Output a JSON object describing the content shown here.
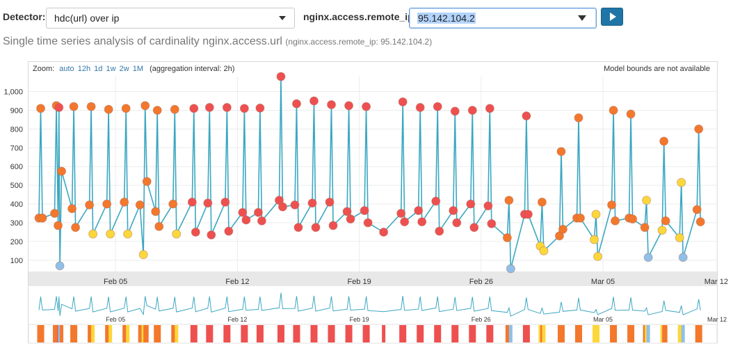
{
  "controls": {
    "detector_label": "Detector:",
    "detector_value": "hdc(url) over ip",
    "entity_label": "nginx.access.remote_ip:",
    "entity_value": "95.142.104.2",
    "run_icon": "play-icon"
  },
  "subtitle": {
    "main": "Single time series analysis of cardinality nginx.access.url",
    "entity": "(nginx.access.remote_ip: 95.142.104.2)"
  },
  "zoom": {
    "label": "Zoom:",
    "options": [
      "auto",
      "12h",
      "1d",
      "1w",
      "2w",
      "1M"
    ],
    "aggregation": "(aggregation interval: 2h)"
  },
  "bounds_note": "Model bounds are not available",
  "colors": {
    "line": "#3ba7c1",
    "critical": "#ee5050",
    "major": "#f3782c",
    "minor": "#fcd73a",
    "warning": "#8ec0ea",
    "axis_band": "#e8e8e8"
  },
  "chart_data": {
    "type": "line",
    "x_ticks": [
      "Feb 05",
      "Feb 12",
      "Feb 19",
      "Feb 26",
      "Mar 05",
      "Mar 12"
    ],
    "x_range": [
      "Jan 31",
      "Mar 12"
    ],
    "y_ticks": [
      100,
      200,
      300,
      400,
      500,
      600,
      700,
      800,
      900,
      "1,000"
    ],
    "ylim": [
      40,
      1080
    ],
    "grid": true,
    "series": [
      {
        "points": [
          {
            "x": 0.6,
            "y": 325,
            "s": "major"
          },
          {
            "x": 0.7,
            "y": 910,
            "s": "major"
          },
          {
            "x": 0.8,
            "y": 325,
            "s": "major"
          },
          {
            "x": 1.5,
            "y": 350,
            "s": "major"
          },
          {
            "x": 1.6,
            "y": 925,
            "s": "major"
          },
          {
            "x": 1.7,
            "y": 285,
            "s": "major"
          },
          {
            "x": 1.75,
            "y": 915,
            "s": "critical"
          },
          {
            "x": 1.8,
            "y": 70,
            "s": "warning"
          },
          {
            "x": 1.9,
            "y": 575,
            "s": "major"
          },
          {
            "x": 2.5,
            "y": 375,
            "s": "major"
          },
          {
            "x": 2.6,
            "y": 920,
            "s": "major"
          },
          {
            "x": 2.7,
            "y": 275,
            "s": "major"
          },
          {
            "x": 3.5,
            "y": 395,
            "s": "major"
          },
          {
            "x": 3.6,
            "y": 920,
            "s": "major"
          },
          {
            "x": 3.7,
            "y": 240,
            "s": "minor"
          },
          {
            "x": 4.5,
            "y": 400,
            "s": "major"
          },
          {
            "x": 4.6,
            "y": 905,
            "s": "major"
          },
          {
            "x": 4.7,
            "y": 240,
            "s": "minor"
          },
          {
            "x": 5.5,
            "y": 410,
            "s": "major"
          },
          {
            "x": 5.6,
            "y": 910,
            "s": "major"
          },
          {
            "x": 5.7,
            "y": 240,
            "s": "minor"
          },
          {
            "x": 6.4,
            "y": 395,
            "s": "major"
          },
          {
            "x": 6.6,
            "y": 130,
            "s": "minor"
          },
          {
            "x": 6.7,
            "y": 925,
            "s": "major"
          },
          {
            "x": 6.8,
            "y": 520,
            "s": "major"
          },
          {
            "x": 7.3,
            "y": 360,
            "s": "major"
          },
          {
            "x": 7.4,
            "y": 900,
            "s": "major"
          },
          {
            "x": 7.5,
            "y": 280,
            "s": "major"
          },
          {
            "x": 8.3,
            "y": 400,
            "s": "major"
          },
          {
            "x": 8.4,
            "y": 905,
            "s": "major"
          },
          {
            "x": 8.5,
            "y": 240,
            "s": "minor"
          },
          {
            "x": 9.4,
            "y": 410,
            "s": "critical"
          },
          {
            "x": 9.5,
            "y": 910,
            "s": "critical"
          },
          {
            "x": 9.6,
            "y": 250,
            "s": "critical"
          },
          {
            "x": 10.3,
            "y": 405,
            "s": "critical"
          },
          {
            "x": 10.4,
            "y": 915,
            "s": "critical"
          },
          {
            "x": 10.5,
            "y": 235,
            "s": "critical"
          },
          {
            "x": 11.3,
            "y": 410,
            "s": "critical"
          },
          {
            "x": 11.4,
            "y": 915,
            "s": "critical"
          },
          {
            "x": 11.5,
            "y": 255,
            "s": "critical"
          },
          {
            "x": 12.3,
            "y": 355,
            "s": "critical"
          },
          {
            "x": 12.4,
            "y": 910,
            "s": "critical"
          },
          {
            "x": 12.5,
            "y": 315,
            "s": "critical"
          },
          {
            "x": 13.2,
            "y": 355,
            "s": "critical"
          },
          {
            "x": 13.3,
            "y": 912,
            "s": "critical"
          },
          {
            "x": 13.4,
            "y": 310,
            "s": "critical"
          },
          {
            "x": 14.4,
            "y": 420,
            "s": "critical"
          },
          {
            "x": 14.5,
            "y": 1080,
            "s": "critical"
          },
          {
            "x": 14.6,
            "y": 385,
            "s": "critical"
          },
          {
            "x": 15.3,
            "y": 395,
            "s": "critical"
          },
          {
            "x": 15.4,
            "y": 935,
            "s": "critical"
          },
          {
            "x": 15.5,
            "y": 275,
            "s": "critical"
          },
          {
            "x": 16.3,
            "y": 405,
            "s": "critical"
          },
          {
            "x": 16.4,
            "y": 950,
            "s": "critical"
          },
          {
            "x": 16.5,
            "y": 275,
            "s": "critical"
          },
          {
            "x": 17.3,
            "y": 410,
            "s": "critical"
          },
          {
            "x": 17.4,
            "y": 930,
            "s": "critical"
          },
          {
            "x": 17.5,
            "y": 285,
            "s": "critical"
          },
          {
            "x": 18.3,
            "y": 360,
            "s": "critical"
          },
          {
            "x": 18.4,
            "y": 925,
            "s": "critical"
          },
          {
            "x": 18.5,
            "y": 320,
            "s": "critical"
          },
          {
            "x": 19.3,
            "y": 365,
            "s": "critical"
          },
          {
            "x": 19.4,
            "y": 920,
            "s": "critical"
          },
          {
            "x": 19.5,
            "y": 300,
            "s": "critical"
          },
          {
            "x": 20.4,
            "y": 250,
            "s": "critical"
          },
          {
            "x": 21.4,
            "y": 350,
            "s": "critical"
          },
          {
            "x": 21.5,
            "y": 945,
            "s": "critical"
          },
          {
            "x": 21.6,
            "y": 305,
            "s": "critical"
          },
          {
            "x": 22.4,
            "y": 365,
            "s": "critical"
          },
          {
            "x": 22.5,
            "y": 915,
            "s": "critical"
          },
          {
            "x": 22.6,
            "y": 305,
            "s": "critical"
          },
          {
            "x": 23.4,
            "y": 415,
            "s": "critical"
          },
          {
            "x": 23.5,
            "y": 920,
            "s": "critical"
          },
          {
            "x": 23.6,
            "y": 255,
            "s": "critical"
          },
          {
            "x": 24.4,
            "y": 365,
            "s": "critical"
          },
          {
            "x": 24.5,
            "y": 895,
            "s": "critical"
          },
          {
            "x": 24.6,
            "y": 300,
            "s": "critical"
          },
          {
            "x": 25.4,
            "y": 400,
            "s": "critical"
          },
          {
            "x": 25.5,
            "y": 900,
            "s": "critical"
          },
          {
            "x": 25.6,
            "y": 275,
            "s": "critical"
          },
          {
            "x": 26.4,
            "y": 390,
            "s": "critical"
          },
          {
            "x": 26.5,
            "y": 910,
            "s": "critical"
          },
          {
            "x": 26.6,
            "y": 295,
            "s": "critical"
          },
          {
            "x": 27.5,
            "y": 220,
            "s": "major"
          },
          {
            "x": 27.6,
            "y": 420,
            "s": "major"
          },
          {
            "x": 27.7,
            "y": 55,
            "s": "warning"
          },
          {
            "x": 28.5,
            "y": 345,
            "s": "critical"
          },
          {
            "x": 28.6,
            "y": 870,
            "s": "critical"
          },
          {
            "x": 28.7,
            "y": 345,
            "s": "critical"
          },
          {
            "x": 29.4,
            "y": 175,
            "s": "minor"
          },
          {
            "x": 29.5,
            "y": 410,
            "s": "major"
          },
          {
            "x": 29.6,
            "y": 150,
            "s": "minor"
          },
          {
            "x": 30.5,
            "y": 230,
            "s": "major"
          },
          {
            "x": 30.6,
            "y": 680,
            "s": "major"
          },
          {
            "x": 30.7,
            "y": 265,
            "s": "major"
          },
          {
            "x": 31.5,
            "y": 325,
            "s": "major"
          },
          {
            "x": 31.6,
            "y": 860,
            "s": "major"
          },
          {
            "x": 31.7,
            "y": 325,
            "s": "major"
          },
          {
            "x": 32.5,
            "y": 210,
            "s": "minor"
          },
          {
            "x": 32.6,
            "y": 345,
            "s": "minor"
          },
          {
            "x": 32.7,
            "y": 120,
            "s": "minor"
          },
          {
            "x": 33.5,
            "y": 395,
            "s": "major"
          },
          {
            "x": 33.6,
            "y": 900,
            "s": "major"
          },
          {
            "x": 33.7,
            "y": 310,
            "s": "major"
          },
          {
            "x": 34.5,
            "y": 325,
            "s": "major"
          },
          {
            "x": 34.6,
            "y": 880,
            "s": "major"
          },
          {
            "x": 34.7,
            "y": 320,
            "s": "major"
          },
          {
            "x": 35.4,
            "y": 275,
            "s": "major"
          },
          {
            "x": 35.5,
            "y": 420,
            "s": "minor"
          },
          {
            "x": 35.6,
            "y": 115,
            "s": "warning"
          },
          {
            "x": 36.4,
            "y": 260,
            "s": "minor"
          },
          {
            "x": 36.5,
            "y": 735,
            "s": "major"
          },
          {
            "x": 36.6,
            "y": 310,
            "s": "major"
          },
          {
            "x": 37.4,
            "y": 220,
            "s": "minor"
          },
          {
            "x": 37.5,
            "y": 515,
            "s": "minor"
          },
          {
            "x": 37.6,
            "y": 115,
            "s": "warning"
          },
          {
            "x": 38.4,
            "y": 370,
            "s": "major"
          },
          {
            "x": 38.5,
            "y": 800,
            "s": "major"
          },
          {
            "x": 38.6,
            "y": 305,
            "s": "major"
          }
        ]
      }
    ]
  },
  "context_ticks": [
    "Feb 05",
    "Feb 12",
    "Feb 19",
    "Feb 26",
    "Mar 05",
    "Mar 12"
  ]
}
